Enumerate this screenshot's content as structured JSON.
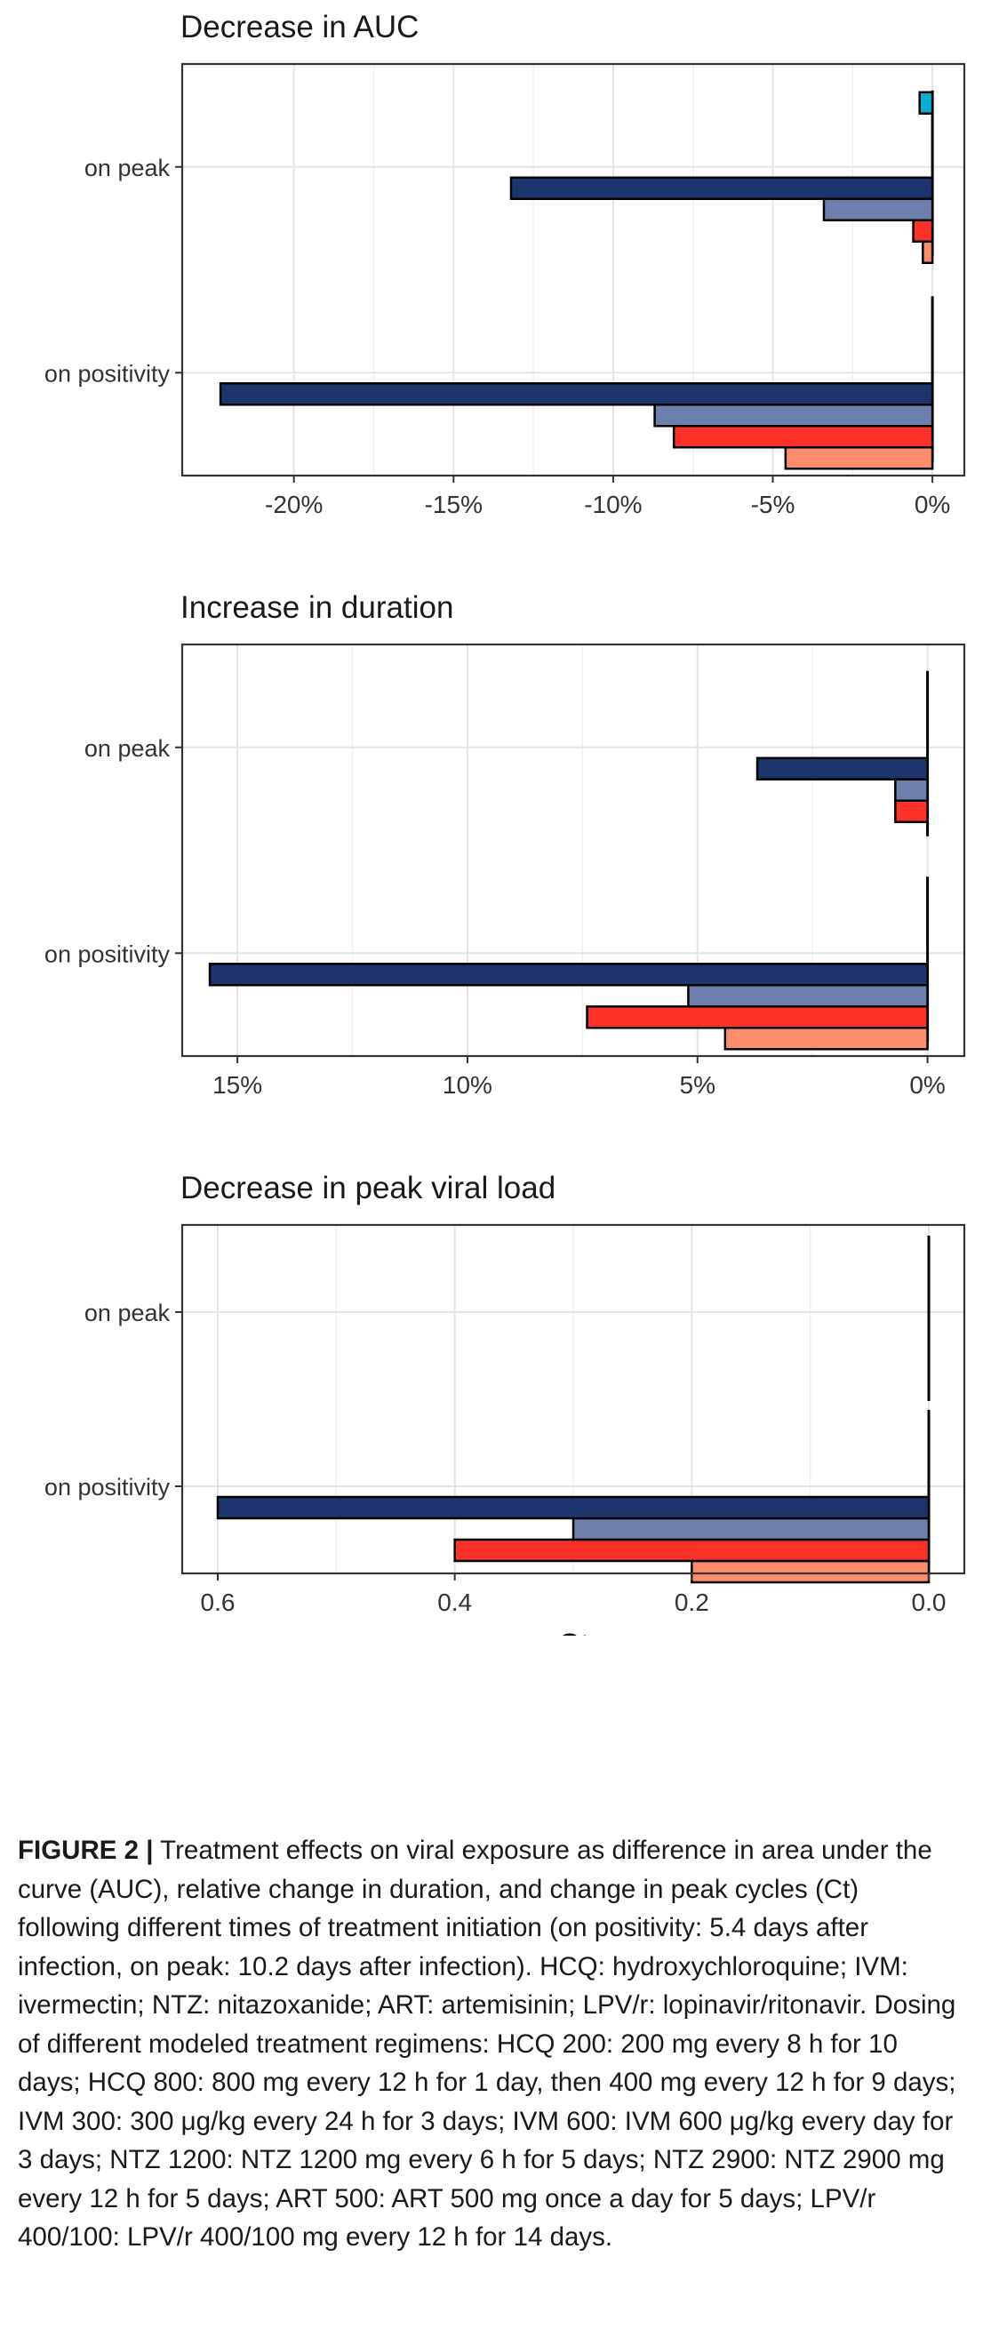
{
  "chart_data": [
    {
      "type": "bar",
      "orientation": "horizontal",
      "title": "Decrease in AUC",
      "xlabel": "",
      "ylabel": "",
      "categories": [
        "on peak",
        "on positivity"
      ],
      "xlim": [
        -23.5,
        1
      ],
      "x_ticks": [
        -20,
        -15,
        -10,
        -5,
        0
      ],
      "x_tick_labels": [
        "-20%",
        "-15%",
        "-10%",
        "-5%",
        "0%"
      ],
      "grid": true,
      "series": [
        {
          "name": "HCQ 200",
          "values": [
            -0.3,
            -4.6
          ]
        },
        {
          "name": "HCQ 800",
          "values": [
            -0.6,
            -8.1
          ]
        },
        {
          "name": "IVM 300",
          "values": [
            -3.4,
            -8.7
          ]
        },
        {
          "name": "IVM 600",
          "values": [
            -13.2,
            -22.3
          ]
        },
        {
          "name": "NTZ 1200",
          "values": [
            0,
            0
          ]
        },
        {
          "name": "NTZ 2900",
          "values": [
            0,
            0
          ]
        },
        {
          "name": "ART 500",
          "values": [
            0,
            0
          ]
        },
        {
          "name": "LPV/r 400/100",
          "values": [
            -0.4,
            0
          ]
        }
      ]
    },
    {
      "type": "bar",
      "orientation": "horizontal",
      "title": "Increase in duration",
      "xlabel": "",
      "ylabel": "",
      "categories": [
        "on peak",
        "on positivity"
      ],
      "xlim": [
        16.2,
        -0.8
      ],
      "x_ticks": [
        15,
        10,
        5,
        0
      ],
      "x_tick_labels": [
        "15%",
        "10%",
        "5%",
        "0%"
      ],
      "grid": true,
      "series": [
        {
          "name": "HCQ 200",
          "values": [
            0,
            4.4
          ]
        },
        {
          "name": "HCQ 800",
          "values": [
            0.7,
            7.4
          ]
        },
        {
          "name": "IVM 300",
          "values": [
            0.7,
            5.2
          ]
        },
        {
          "name": "IVM 600",
          "values": [
            3.7,
            15.6
          ]
        },
        {
          "name": "NTZ 1200",
          "values": [
            0,
            0
          ]
        },
        {
          "name": "NTZ 2900",
          "values": [
            0,
            0
          ]
        },
        {
          "name": "ART 500",
          "values": [
            0,
            0
          ]
        },
        {
          "name": "LPV/r 400/100",
          "values": [
            0,
            0
          ]
        }
      ]
    },
    {
      "type": "bar",
      "orientation": "horizontal",
      "title": "Decrease in peak viral load",
      "xlabel": "Ct",
      "ylabel": "",
      "categories": [
        "on peak",
        "on positivity"
      ],
      "xlim": [
        0.63,
        -0.03
      ],
      "x_ticks": [
        0.6,
        0.4,
        0.2,
        0.0
      ],
      "x_tick_labels": [
        "0.6",
        "0.4",
        "0.2",
        "0.0"
      ],
      "grid": true,
      "series": [
        {
          "name": "HCQ 200",
          "values": [
            0,
            0.2
          ]
        },
        {
          "name": "HCQ 800",
          "values": [
            0,
            0.4
          ]
        },
        {
          "name": "IVM 300",
          "values": [
            0,
            0.3
          ]
        },
        {
          "name": "IVM 600",
          "values": [
            0,
            0.6
          ]
        },
        {
          "name": "NTZ 1200",
          "values": [
            0,
            0
          ]
        },
        {
          "name": "NTZ 2900",
          "values": [
            0,
            0
          ]
        },
        {
          "name": "ART 500",
          "values": [
            0,
            0
          ]
        },
        {
          "name": "LPV/r 400/100",
          "values": [
            0,
            0
          ]
        }
      ]
    }
  ],
  "legend": {
    "placement": "bottom",
    "items": [
      {
        "label": "HCQ 200",
        "color": "#fc8d6c"
      },
      {
        "label": "HCQ 800",
        "color": "#fc3228"
      },
      {
        "label": "IVM 300",
        "color": "#6c7fad"
      },
      {
        "label": "IVM 600",
        "color": "#1d346c"
      },
      {
        "label": "NTZ 1200",
        "color": "#44c8b6"
      },
      {
        "label": "NTZ 2900",
        "color": "#008e6e"
      },
      {
        "label": "ART 500",
        "color": "#c8bc7c"
      },
      {
        "label": "LPV/r 400/100",
        "color": "#0aaed0"
      }
    ]
  },
  "caption": {
    "label": "FIGURE 2 |",
    "text": "Treatment effects on viral exposure as difference in area under the curve (AUC), relative change in duration, and change in peak cycles (Ct) following different times of treatment initiation (on positivity: 5.4 days after infection, on peak: 10.2 days after infection). HCQ: hydroxychloroquine; IVM: ivermectin; NTZ: nitazoxanide; ART: artemisinin; LPV/r: lopinavir/ritonavir. Dosing of different modeled treatment regimens: HCQ 200: 200 mg every 8 h for 10 days; HCQ 800: 800 mg every 12 h for 1 day, then 400 mg every 12 h for 9 days; IVM 300: 300 μg/kg every 24 h for 3 days; IVM 600: IVM 600 μg/kg every day for 3 days; NTZ 1200: NTZ 1200 mg every 6 h for 5 days; NTZ 2900: NTZ 2900 mg every 12 h for 5 days; ART 500: ART 500 mg once a day for 5 days; LPV/r 400/100: LPV/r 400/100 mg every 12 h for 14 days."
  }
}
